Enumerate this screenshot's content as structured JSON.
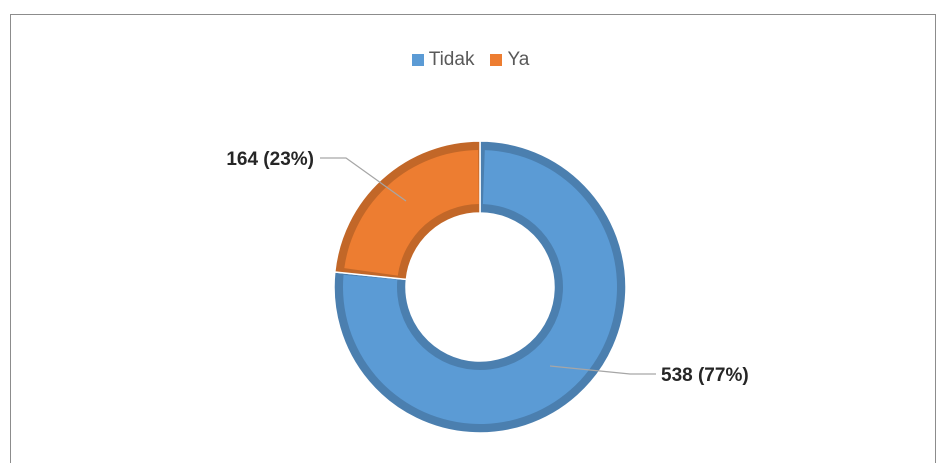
{
  "chart_data": {
    "type": "pie",
    "subtype": "donut",
    "categories": [
      "Tidak",
      "Ya"
    ],
    "values": [
      538,
      164
    ],
    "percentages": [
      "77%",
      "23%"
    ],
    "data_labels": [
      "538 (77%)",
      "164 (23%)"
    ],
    "colors": [
      "#5B9BD5",
      "#ED7D31"
    ],
    "legend": {
      "position": "top",
      "entries": [
        "Tidak",
        "Ya"
      ]
    },
    "title": ""
  }
}
